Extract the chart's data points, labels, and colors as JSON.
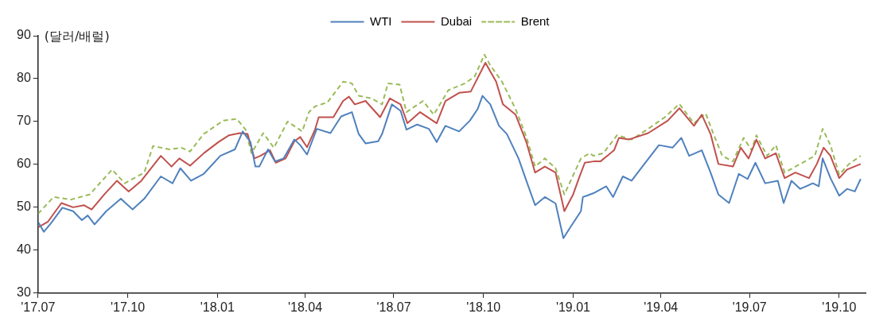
{
  "chart_data": {
    "type": "line",
    "ylabel": "(달러/배럴)",
    "legend": "top",
    "grid": false,
    "marker": "none",
    "xlim": [
      "2017-07-01",
      "2019-10-28"
    ],
    "xticks": [
      {
        "value": "2017-07",
        "label": "'17.07"
      },
      {
        "value": "2017-10",
        "label": "'17.10"
      },
      {
        "value": "2018-01",
        "label": "'18.01"
      },
      {
        "value": "2018-04",
        "label": "'18.04"
      },
      {
        "value": "2018-07",
        "label": "'18.07"
      },
      {
        "value": "2018-10",
        "label": "'18.10"
      },
      {
        "value": "2019-01",
        "label": "'19.01"
      },
      {
        "value": "2019-04",
        "label": "'19.04"
      },
      {
        "value": "2019-07",
        "label": "'19.07"
      },
      {
        "value": "2019-10",
        "label": "'19.10"
      }
    ],
    "ylim": [
      30,
      90
    ],
    "yticks": [
      30,
      40,
      50,
      60,
      70,
      80,
      90
    ],
    "series": [
      {
        "name": "WTI",
        "color": "#4f81bd",
        "line_style": "solid",
        "x": [
          "2017-07-01",
          "2017-07-07",
          "2017-07-14",
          "2017-07-26",
          "2017-08-06",
          "2017-08-15",
          "2017-08-21",
          "2017-08-28",
          "2017-09-09",
          "2017-09-24",
          "2017-10-06",
          "2017-10-18",
          "2017-11-04",
          "2017-11-16",
          "2017-11-24",
          "2017-12-05",
          "2017-12-18",
          "2018-01-04",
          "2018-01-19",
          "2018-01-27",
          "2018-02-04",
          "2018-02-09",
          "2018-02-13",
          "2018-02-22",
          "2018-03-01",
          "2018-03-10",
          "2018-03-21",
          "2018-03-27",
          "2018-04-03",
          "2018-04-13",
          "2018-04-27",
          "2018-05-08",
          "2018-05-19",
          "2018-05-26",
          "2018-06-02",
          "2018-06-15",
          "2018-06-19",
          "2018-06-29",
          "2018-07-08",
          "2018-07-14",
          "2018-07-25",
          "2018-08-06",
          "2018-08-14",
          "2018-08-23",
          "2018-09-06",
          "2018-09-17",
          "2018-09-25",
          "2018-09-30",
          "2018-10-08",
          "2018-10-17",
          "2018-10-25",
          "2018-11-06",
          "2018-11-14",
          "2018-11-23",
          "2018-12-03",
          "2018-12-14",
          "2018-12-22",
          "2018-12-29",
          "2019-01-09",
          "2019-01-11",
          "2019-01-15",
          "2019-01-22",
          "2019-02-04",
          "2019-02-11",
          "2019-02-21",
          "2019-03-02",
          "2019-03-13",
          "2019-03-30",
          "2019-04-13",
          "2019-04-22",
          "2019-04-30",
          "2019-05-13",
          "2019-05-22",
          "2019-05-30",
          "2019-06-10",
          "2019-06-20",
          "2019-06-29",
          "2019-07-07",
          "2019-07-17",
          "2019-07-30",
          "2019-08-05",
          "2019-08-13",
          "2019-08-22",
          "2019-09-04",
          "2019-09-10",
          "2019-09-14",
          "2019-09-22",
          "2019-10-01",
          "2019-10-09",
          "2019-10-17",
          "2019-10-23"
        ],
        "values": [
          46.6,
          44.3,
          46.2,
          49.9,
          49.1,
          47.0,
          48.1,
          46.0,
          49.1,
          52.0,
          49.5,
          52.0,
          57.2,
          55.6,
          59.1,
          56.2,
          57.8,
          62.0,
          63.5,
          67.7,
          65.2,
          59.5,
          59.5,
          63.5,
          60.7,
          61.4,
          65.8,
          64.5,
          62.3,
          68.3,
          67.3,
          71.2,
          72.2,
          67.1,
          64.9,
          65.4,
          67.1,
          74.0,
          72.5,
          68.1,
          69.3,
          68.3,
          65.2,
          69.0,
          67.7,
          70.2,
          72.9,
          76.0,
          74.0,
          69.0,
          67.1,
          61.4,
          56.2,
          50.5,
          52.4,
          50.9,
          42.8,
          45.3,
          49.1,
          52.4,
          52.7,
          53.3,
          54.9,
          52.4,
          57.2,
          56.2,
          59.5,
          64.5,
          63.9,
          66.2,
          62.0,
          63.3,
          58.1,
          53.0,
          51.0,
          57.8,
          56.6,
          60.4,
          55.6,
          56.2,
          51.0,
          56.2,
          54.3,
          55.6,
          54.9,
          61.4,
          56.8,
          52.7,
          54.3,
          53.7,
          56.6
        ]
      },
      {
        "name": "Dubai",
        "color": "#c0504d",
        "line_style": "solid",
        "x": [
          "2017-07-01",
          "2017-07-11",
          "2017-07-25",
          "2017-08-06",
          "2017-08-17",
          "2017-08-25",
          "2017-09-07",
          "2017-09-20",
          "2017-10-02",
          "2017-10-15",
          "2017-11-04",
          "2017-11-15",
          "2017-11-23",
          "2017-12-04",
          "2017-12-18",
          "2018-01-02",
          "2018-01-13",
          "2018-01-24",
          "2018-02-01",
          "2018-02-08",
          "2018-02-14",
          "2018-02-24",
          "2018-03-02",
          "2018-03-12",
          "2018-03-21",
          "2018-03-27",
          "2018-04-03",
          "2018-04-11",
          "2018-04-15",
          "2018-04-30",
          "2018-05-10",
          "2018-05-16",
          "2018-05-22",
          "2018-06-02",
          "2018-06-17",
          "2018-06-27",
          "2018-07-08",
          "2018-07-15",
          "2018-07-28",
          "2018-08-14",
          "2018-08-23",
          "2018-09-06",
          "2018-09-18",
          "2018-10-03",
          "2018-10-14",
          "2018-10-21",
          "2018-11-03",
          "2018-11-14",
          "2018-11-23",
          "2018-12-03",
          "2018-12-14",
          "2018-12-23",
          "2019-01-01",
          "2019-01-07",
          "2019-01-13",
          "2019-01-22",
          "2019-01-29",
          "2019-02-12",
          "2019-02-17",
          "2019-02-27",
          "2019-03-19",
          "2019-04-08",
          "2019-04-20",
          "2019-05-05",
          "2019-05-13",
          "2019-05-22",
          "2019-05-30",
          "2019-06-14",
          "2019-06-22",
          "2019-06-30",
          "2019-07-08",
          "2019-07-17",
          "2019-07-28",
          "2019-08-06",
          "2019-08-17",
          "2019-08-31",
          "2019-09-08",
          "2019-09-15",
          "2019-09-22",
          "2019-10-01",
          "2019-10-09",
          "2019-10-23"
        ],
        "values": [
          45.3,
          46.6,
          51.0,
          50.0,
          50.5,
          49.5,
          53.0,
          56.2,
          53.7,
          56.2,
          62.0,
          59.5,
          61.4,
          59.7,
          62.6,
          65.2,
          66.8,
          67.3,
          67.1,
          61.4,
          62.0,
          63.3,
          60.4,
          61.4,
          65.4,
          66.4,
          64.0,
          68.0,
          71.0,
          71.0,
          74.8,
          75.8,
          74.0,
          74.8,
          71.0,
          75.4,
          74.0,
          69.6,
          72.2,
          69.6,
          74.8,
          76.7,
          77.0,
          83.7,
          79.3,
          74.0,
          71.6,
          65.2,
          58.1,
          59.5,
          58.1,
          49.1,
          53.0,
          56.8,
          60.4,
          60.7,
          60.7,
          63.3,
          66.2,
          65.8,
          67.3,
          70.2,
          73.1,
          69.0,
          71.6,
          67.1,
          60.1,
          59.5,
          63.9,
          61.4,
          65.8,
          61.4,
          62.6,
          56.8,
          58.1,
          56.8,
          60.1,
          63.9,
          62.0,
          56.8,
          58.8,
          60.1
        ]
      },
      {
        "name": "Brent",
        "color": "#9bbb59",
        "line_style": "dashed",
        "x": [
          "2017-07-01",
          "2017-07-17",
          "2017-08-04",
          "2017-08-23",
          "2017-09-15",
          "2017-09-28",
          "2017-10-18",
          "2017-10-27",
          "2017-11-13",
          "2017-11-25",
          "2017-12-04",
          "2017-12-18",
          "2018-01-07",
          "2018-01-21",
          "2018-01-30",
          "2018-02-05",
          "2018-02-17",
          "2018-02-28",
          "2018-03-14",
          "2018-03-29",
          "2018-04-05",
          "2018-04-11",
          "2018-04-24",
          "2018-05-10",
          "2018-05-19",
          "2018-05-26",
          "2018-06-08",
          "2018-06-19",
          "2018-06-25",
          "2018-07-07",
          "2018-07-14",
          "2018-07-31",
          "2018-08-11",
          "2018-08-26",
          "2018-09-12",
          "2018-09-22",
          "2018-10-02",
          "2018-10-08",
          "2018-10-20",
          "2018-11-03",
          "2018-11-14",
          "2018-11-23",
          "2018-12-03",
          "2018-12-14",
          "2018-12-23",
          "2019-01-09",
          "2019-01-18",
          "2019-01-22",
          "2019-02-01",
          "2019-02-15",
          "2019-03-02",
          "2019-03-19",
          "2019-04-05",
          "2019-04-20",
          "2019-05-05",
          "2019-05-17",
          "2019-05-25",
          "2019-06-03",
          "2019-06-14",
          "2019-06-25",
          "2019-07-03",
          "2019-07-08",
          "2019-07-19",
          "2019-07-28",
          "2019-08-06",
          "2019-08-22",
          "2019-09-06",
          "2019-09-14",
          "2019-09-22",
          "2019-10-01",
          "2019-10-11",
          "2019-10-23"
        ],
        "values": [
          48.5,
          52.4,
          51.8,
          53.0,
          58.8,
          55.6,
          58.1,
          64.3,
          63.5,
          63.9,
          63.0,
          67.1,
          70.2,
          70.6,
          68.1,
          62.6,
          67.3,
          63.9,
          70.0,
          67.7,
          72.2,
          73.5,
          74.5,
          79.3,
          78.9,
          76.0,
          75.4,
          74.0,
          78.9,
          78.6,
          72.2,
          74.8,
          71.6,
          77.3,
          78.9,
          80.5,
          85.6,
          83.1,
          79.3,
          72.9,
          66.4,
          59.5,
          61.4,
          59.1,
          53.0,
          61.4,
          62.6,
          62.0,
          62.6,
          66.8,
          65.8,
          68.3,
          71.0,
          74.1,
          69.6,
          71.9,
          67.1,
          62.0,
          60.7,
          66.2,
          63.3,
          66.8,
          62.0,
          64.5,
          58.1,
          60.1,
          62.0,
          68.3,
          64.5,
          57.6,
          60.1,
          62.0
        ]
      }
    ]
  }
}
